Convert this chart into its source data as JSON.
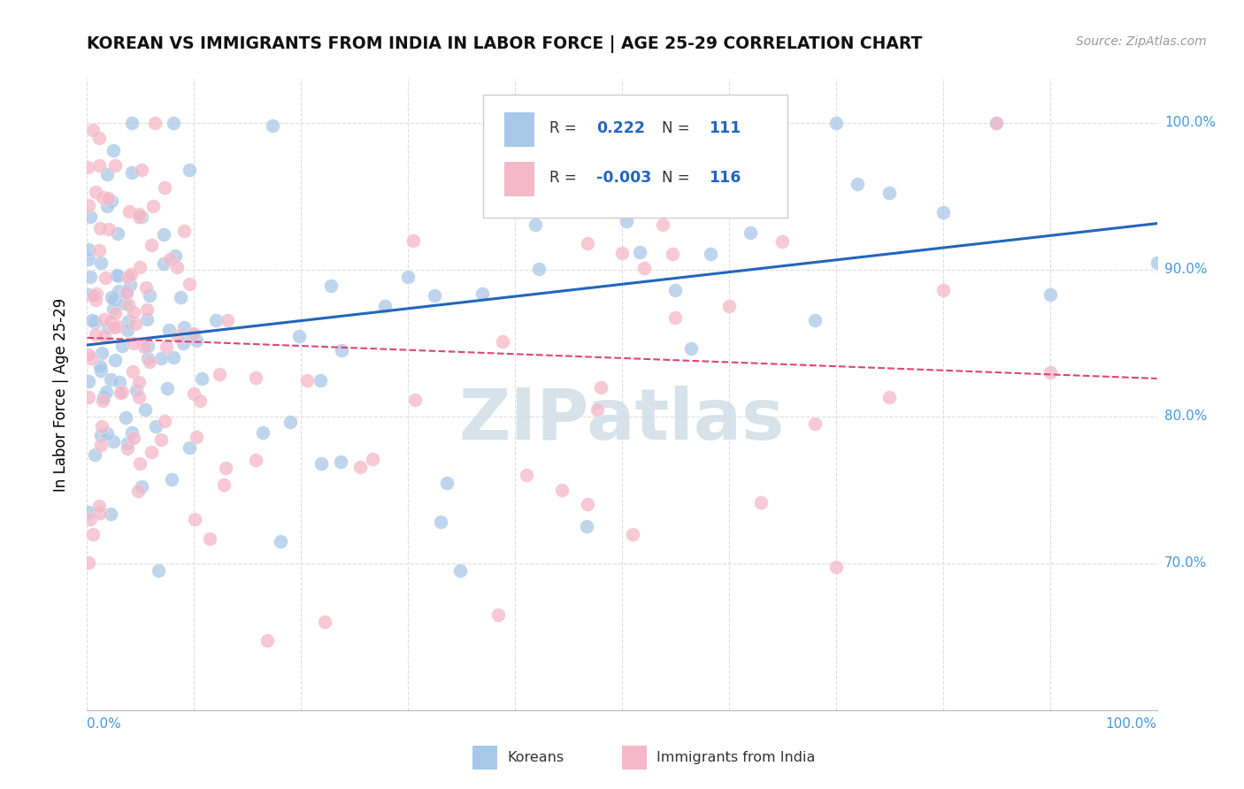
{
  "title": "KOREAN VS IMMIGRANTS FROM INDIA IN LABOR FORCE | AGE 25-29 CORRELATION CHART",
  "source": "Source: ZipAtlas.com",
  "ylabel": "In Labor Force | Age 25-29",
  "korean_color": "#a8c8e8",
  "india_color": "#f4b8c8",
  "korean_line_color": "#2266bb",
  "india_line_color": "#dd4477",
  "background_color": "#ffffff",
  "grid_color": "#dddddd",
  "watermark_color": "#d0dde8",
  "right_label_color": "#4499dd",
  "xlim": [
    0.0,
    1.0
  ],
  "ylim": [
    0.6,
    1.03
  ],
  "yticks": [
    0.7,
    0.8,
    0.9,
    1.0
  ],
  "ytick_labels": [
    "70.0%",
    "80.0%",
    "90.0%",
    "100.0%"
  ]
}
